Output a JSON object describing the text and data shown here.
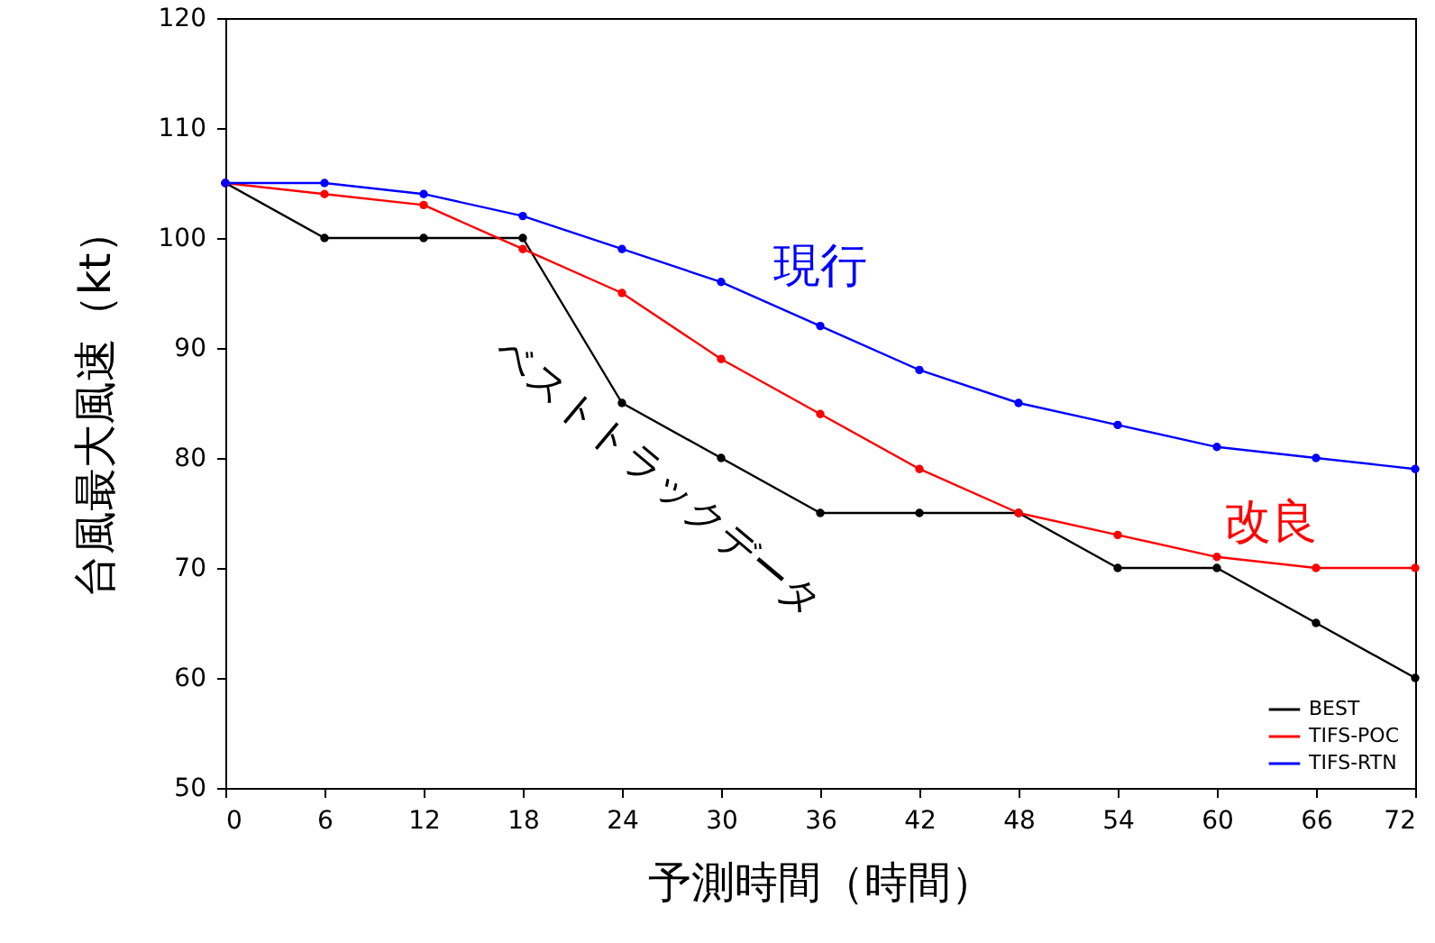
{
  "chart_data": {
    "type": "line",
    "xlabel": "予測時間（時間）",
    "ylabel": "台風最大風速（kt）",
    "x": [
      0,
      6,
      12,
      18,
      24,
      30,
      36,
      42,
      48,
      54,
      60,
      66,
      72
    ],
    "series": [
      {
        "name": "BEST",
        "color": "#000000",
        "values": [
          105,
          100,
          100,
          100,
          85,
          80,
          75,
          75,
          75,
          70,
          70,
          65,
          60
        ]
      },
      {
        "name": "TIFS-POC",
        "color": "#ff0000",
        "values": [
          105,
          104,
          103,
          99,
          95,
          89,
          84,
          79,
          75,
          73,
          71,
          70,
          70
        ]
      },
      {
        "name": "TIFS-RTN",
        "color": "#0000ff",
        "values": [
          105,
          105,
          104,
          102,
          99,
          96,
          92,
          88,
          85,
          83,
          81,
          80,
          79
        ]
      }
    ],
    "xlim": [
      0,
      72
    ],
    "xticks": [
      0,
      6,
      12,
      18,
      24,
      30,
      36,
      42,
      48,
      54,
      60,
      66,
      72
    ],
    "ylim": [
      50,
      120
    ],
    "yticks": [
      50,
      60,
      70,
      80,
      90,
      100,
      110,
      120
    ],
    "annotations": [
      "現行",
      "改良",
      "ベストトラックデータ"
    ],
    "legend": "bottom right",
    "marker": "circle",
    "line_style": "solid",
    "grid": false
  }
}
